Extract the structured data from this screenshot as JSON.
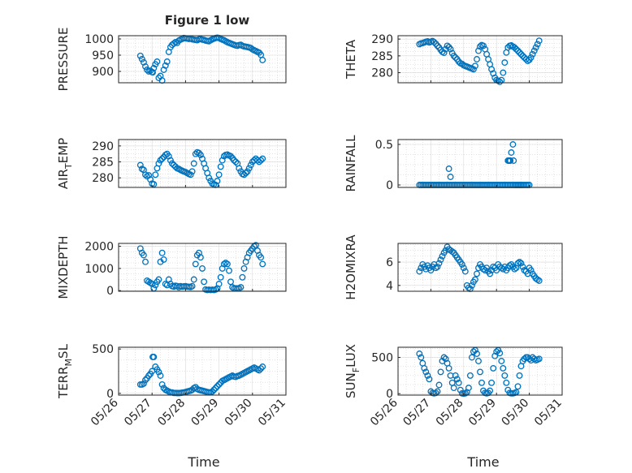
{
  "figure": {
    "title": "Figure 1 low"
  },
  "colors": {
    "marker": "#0072bd",
    "axes": "#262626"
  },
  "x_axis": {
    "label": "Time",
    "ticks": [
      "05/26",
      "05/27",
      "05/28",
      "05/29",
      "05/30",
      "05/31"
    ],
    "tick_values": [
      26,
      27,
      28,
      29,
      30,
      31
    ],
    "range": [
      26,
      31
    ]
  },
  "chart_data": [
    {
      "type": "scatter",
      "ylabel": "PRESSURE",
      "ylim": [
        865,
        1010
      ],
      "yticks": [
        900,
        950,
        1000
      ],
      "grid": true,
      "minor_grid": true,
      "x": [
        26.65,
        26.7,
        26.75,
        26.8,
        26.85,
        26.9,
        26.95,
        27.0,
        27.02,
        27.05,
        27.1,
        27.15,
        27.2,
        27.25,
        27.3,
        27.35,
        27.4,
        27.45,
        27.5,
        27.55,
        27.6,
        27.65,
        27.7,
        27.75,
        27.8,
        27.85,
        27.9,
        27.95,
        28.0,
        28.05,
        28.1,
        28.15,
        28.2,
        28.25,
        28.3,
        28.35,
        28.4,
        28.45,
        28.5,
        28.55,
        28.6,
        28.65,
        28.7,
        28.75,
        28.8,
        28.85,
        28.9,
        28.95,
        29.0,
        29.05,
        29.1,
        29.15,
        29.2,
        29.25,
        29.3,
        29.35,
        29.4,
        29.45,
        29.5,
        29.55,
        29.6,
        29.65,
        29.7,
        29.75,
        29.8,
        29.85,
        29.9,
        29.95,
        30.0,
        30.05,
        30.1,
        30.15,
        30.2,
        30.25,
        30.3
      ],
      "y": [
        948,
        938,
        928,
        915,
        905,
        900,
        902,
        898,
        897,
        910,
        922,
        930,
        880,
        886,
        872,
        905,
        918,
        930,
        960,
        975,
        982,
        986,
        990,
        988,
        995,
        998,
        1000,
        1003,
        1002,
        1001,
        1000,
        1001,
        999,
        998,
        997,
        996,
        999,
        1000,
        998,
        997,
        995,
        994,
        993,
        996,
        999,
        1001,
        1003,
        1004,
        1003,
        1000,
        998,
        996,
        993,
        990,
        988,
        986,
        984,
        982,
        980,
        979,
        981,
        982,
        979,
        977,
        976,
        975,
        974,
        972,
        968,
        965,
        963,
        960,
        958,
        951,
        935
      ]
    },
    {
      "type": "scatter",
      "ylabel": "THETA",
      "ylim": [
        277,
        291
      ],
      "yticks": [
        280,
        285,
        290
      ],
      "grid": true,
      "minor_grid": true,
      "x": [
        26.65,
        26.7,
        26.75,
        26.8,
        26.85,
        26.9,
        26.95,
        27.0,
        27.05,
        27.1,
        27.15,
        27.2,
        27.25,
        27.3,
        27.35,
        27.4,
        27.45,
        27.5,
        27.55,
        27.6,
        27.65,
        27.7,
        27.75,
        27.8,
        27.85,
        27.9,
        27.95,
        28.0,
        28.05,
        28.1,
        28.15,
        28.2,
        28.25,
        28.3,
        28.35,
        28.4,
        28.45,
        28.5,
        28.55,
        28.6,
        28.65,
        28.7,
        28.75,
        28.8,
        28.85,
        28.9,
        28.95,
        29.0,
        29.05,
        29.1,
        29.15,
        29.2,
        29.25,
        29.3,
        29.35,
        29.4,
        29.45,
        29.5,
        29.55,
        29.6,
        29.65,
        29.7,
        29.75,
        29.8,
        29.85,
        29.9,
        29.95,
        30.0,
        30.05,
        30.1,
        30.15,
        30.2,
        30.25,
        30.3
      ],
      "y": [
        288.5,
        288.7,
        288.8,
        289.0,
        289.2,
        289.3,
        289.0,
        289.2,
        289.4,
        289.1,
        288.6,
        288.0,
        287.5,
        286.8,
        286.2,
        285.9,
        287.0,
        288.0,
        287.6,
        287.0,
        285.8,
        285.0,
        284.5,
        284.0,
        283.3,
        282.8,
        282.6,
        282.2,
        282.0,
        281.8,
        281.6,
        281.4,
        281.2,
        281.0,
        282.0,
        284.0,
        286.5,
        287.8,
        288.2,
        288.0,
        287.0,
        285.5,
        284.0,
        282.5,
        281.0,
        279.8,
        278.5,
        277.8,
        277.6,
        277.3,
        277.8,
        280.0,
        283.0,
        286.0,
        287.5,
        288.0,
        288.1,
        287.8,
        287.5,
        287.0,
        286.5,
        286.0,
        285.5,
        285.0,
        284.5,
        284.0,
        283.5,
        283.8,
        284.5,
        285.5,
        286.5,
        287.5,
        288.5,
        289.5
      ]
    },
    {
      "type": "scatter",
      "ylabel_main": "AIR",
      "ylabel_sub": "T",
      "ylabel_tail": "EMP",
      "ylim": [
        277,
        292
      ],
      "yticks": [
        280,
        285,
        290
      ],
      "grid": true,
      "minor_grid": true,
      "x": [
        26.65,
        26.7,
        26.75,
        26.8,
        26.85,
        26.9,
        26.95,
        27.0,
        27.05,
        27.1,
        27.15,
        27.2,
        27.25,
        27.3,
        27.35,
        27.4,
        27.45,
        27.5,
        27.55,
        27.6,
        27.65,
        27.7,
        27.75,
        27.8,
        27.85,
        27.9,
        27.95,
        28.0,
        28.05,
        28.1,
        28.15,
        28.2,
        28.25,
        28.3,
        28.35,
        28.4,
        28.45,
        28.5,
        28.55,
        28.6,
        28.65,
        28.7,
        28.75,
        28.8,
        28.85,
        28.9,
        28.95,
        29.0,
        29.05,
        29.1,
        29.15,
        29.2,
        29.25,
        29.3,
        29.35,
        29.4,
        29.45,
        29.5,
        29.55,
        29.6,
        29.65,
        29.7,
        29.75,
        29.8,
        29.85,
        29.9,
        29.95,
        30.0,
        30.05,
        30.1,
        30.15,
        30.2,
        30.25,
        30.3
      ],
      "y": [
        284,
        282.8,
        282.5,
        281,
        280.5,
        280.8,
        279.5,
        278.2,
        278,
        281,
        283,
        284.5,
        285.5,
        286,
        286.5,
        287.2,
        287.5,
        286.8,
        285.5,
        284.5,
        284,
        283.5,
        283,
        282.8,
        282.5,
        282.2,
        282,
        281.8,
        281.5,
        281.2,
        281,
        282,
        284.5,
        287.5,
        288,
        287.8,
        287.2,
        286,
        284.5,
        283,
        281.5,
        280,
        279,
        278.2,
        278,
        277.8,
        279,
        281,
        283.5,
        285.5,
        286.8,
        287.2,
        287.3,
        287,
        286.8,
        286.2,
        285.5,
        285,
        284.5,
        283,
        282,
        281.2,
        281,
        281.5,
        282,
        283,
        284,
        285,
        285.5,
        286,
        285.5,
        285,
        285.5,
        286
      ]
    },
    {
      "type": "scatter",
      "ylabel": "RAINFALL",
      "ylim": [
        -0.03,
        0.56
      ],
      "yticks": [
        0,
        0.5
      ],
      "ytick_labels": [
        "0",
        "0.5"
      ],
      "grid": true,
      "minor_grid": true,
      "x": [
        26.65,
        26.7,
        26.75,
        26.8,
        26.85,
        26.9,
        26.95,
        27.0,
        27.05,
        27.1,
        27.15,
        27.2,
        27.25,
        27.3,
        27.35,
        27.4,
        27.45,
        27.5,
        27.55,
        27.6,
        27.65,
        27.7,
        27.75,
        27.8,
        27.85,
        27.9,
        27.95,
        28.0,
        28.05,
        28.1,
        28.15,
        28.2,
        28.25,
        28.3,
        28.35,
        28.4,
        28.45,
        28.5,
        28.55,
        28.6,
        28.65,
        28.7,
        28.75,
        28.8,
        28.85,
        28.9,
        28.95,
        29.0,
        29.05,
        29.1,
        29.15,
        29.2,
        29.25,
        29.3,
        29.35,
        29.4,
        29.45,
        29.5,
        29.55,
        29.6,
        29.65,
        29.7,
        29.75,
        29.8,
        29.85,
        29.9,
        29.95,
        30.0,
        29.35,
        29.37,
        29.4,
        29.42,
        27.55,
        27.6,
        29.45,
        29.5,
        29.52,
        29.6,
        29.65,
        29.7,
        29.75
      ],
      "y": [
        0,
        0,
        0,
        0,
        0,
        0,
        0,
        0,
        0,
        0,
        0,
        0,
        0,
        0,
        0,
        0,
        0,
        0,
        0,
        0,
        0,
        0,
        0,
        0,
        0,
        0,
        0,
        0,
        0,
        0,
        0,
        0,
        0,
        0,
        0,
        0,
        0,
        0,
        0,
        0,
        0,
        0,
        0,
        0,
        0,
        0,
        0,
        0,
        0,
        0,
        0,
        0,
        0,
        0,
        0,
        0,
        0,
        0,
        0,
        0,
        0,
        0,
        0,
        0,
        0,
        0,
        0,
        0,
        0.3,
        0.3,
        0.3,
        0.3,
        0.2,
        0.1,
        0.4,
        0.5,
        0.3,
        0,
        0,
        0,
        0
      ]
    },
    {
      "type": "scatter",
      "ylabel": "MIXDEPTH",
      "ylim": [
        -30,
        2130
      ],
      "yticks": [
        0,
        1000,
        2000
      ],
      "grid": true,
      "minor_grid": true,
      "x": [
        26.65,
        26.7,
        26.75,
        26.8,
        26.85,
        26.9,
        26.95,
        27.0,
        27.05,
        27.1,
        27.15,
        27.2,
        27.25,
        27.3,
        27.35,
        27.4,
        27.45,
        27.5,
        27.55,
        27.6,
        27.65,
        27.7,
        27.75,
        27.8,
        27.85,
        27.9,
        27.95,
        28.0,
        28.05,
        28.1,
        28.15,
        28.2,
        28.25,
        28.3,
        28.35,
        28.4,
        28.45,
        28.5,
        28.55,
        28.6,
        28.65,
        28.7,
        28.75,
        28.8,
        28.85,
        28.9,
        28.95,
        29.0,
        29.05,
        29.1,
        29.15,
        29.2,
        29.25,
        29.3,
        29.35,
        29.4,
        29.45,
        29.5,
        29.55,
        29.6,
        29.65,
        29.7,
        29.75,
        29.8,
        29.85,
        29.9,
        29.95,
        30.0,
        30.05,
        30.1,
        30.15,
        30.2,
        30.25,
        30.3
      ],
      "y": [
        1900,
        1700,
        1600,
        1300,
        450,
        400,
        350,
        300,
        100,
        250,
        400,
        500,
        1300,
        1700,
        1400,
        300,
        250,
        500,
        300,
        200,
        180,
        220,
        200,
        150,
        200,
        180,
        190,
        200,
        180,
        170,
        160,
        200,
        500,
        1200,
        1600,
        1700,
        1500,
        1000,
        400,
        50,
        30,
        40,
        30,
        40,
        30,
        50,
        100,
        300,
        600,
        1000,
        1200,
        1250,
        1200,
        900,
        400,
        150,
        100,
        100,
        100,
        100,
        150,
        600,
        1000,
        1300,
        1500,
        1700,
        1800,
        1900,
        2000,
        2050,
        1800,
        1600,
        1500,
        1200
      ]
    },
    {
      "type": "scatter",
      "ylabel": "H2OMIXRA",
      "ylim": [
        3.5,
        7.6
      ],
      "yticks": [
        4,
        6
      ],
      "grid": true,
      "minor_grid": true,
      "x": [
        26.65,
        26.7,
        26.75,
        26.8,
        26.85,
        26.9,
        26.95,
        27.0,
        27.05,
        27.1,
        27.15,
        27.2,
        27.25,
        27.3,
        27.35,
        27.4,
        27.45,
        27.5,
        27.55,
        27.6,
        27.65,
        27.7,
        27.75,
        27.8,
        27.85,
        27.9,
        27.95,
        28.0,
        28.05,
        28.1,
        28.15,
        28.2,
        28.25,
        28.3,
        28.35,
        28.4,
        28.45,
        28.5,
        28.55,
        28.6,
        28.65,
        28.7,
        28.75,
        28.8,
        28.85,
        28.9,
        28.95,
        29.0,
        29.05,
        29.1,
        29.15,
        29.2,
        29.25,
        29.3,
        29.35,
        29.4,
        29.45,
        29.5,
        29.55,
        29.6,
        29.65,
        29.7,
        29.75,
        29.8,
        29.85,
        29.9,
        29.95,
        30.0,
        30.05,
        30.1,
        30.15,
        30.2,
        30.25,
        30.3
      ],
      "y": [
        5.2,
        5.5,
        5.8,
        5.6,
        5.4,
        5.7,
        5.5,
        5.3,
        5.6,
        5.8,
        5.5,
        5.6,
        5.9,
        6.2,
        6.5,
        6.8,
        7.0,
        7.3,
        7.1,
        7.0,
        6.9,
        6.8,
        6.6,
        6.4,
        6.2,
        6.0,
        5.8,
        5.5,
        5.2,
        4.0,
        3.8,
        3.7,
        4.0,
        4.3,
        4.5,
        5.0,
        5.5,
        5.8,
        5.6,
        5.4,
        5.3,
        5.5,
        5.2,
        5.0,
        5.3,
        5.6,
        5.5,
        5.3,
        5.8,
        5.6,
        5.5,
        5.4,
        5.6,
        5.3,
        5.5,
        5.7,
        5.8,
        5.6,
        5.4,
        5.5,
        5.9,
        6.0,
        5.9,
        5.6,
        5.3,
        5.2,
        5.0,
        5.5,
        5.3,
        5.0,
        4.8,
        4.6,
        4.5,
        4.4
      ]
    },
    {
      "type": "scatter",
      "ylabel_main": "TERR",
      "ylabel_sub": "M",
      "ylabel_tail": "SL",
      "ylim": [
        -20,
        520
      ],
      "yticks": [
        0,
        500
      ],
      "grid": true,
      "minor_grid": true,
      "x": [
        26.65,
        26.7,
        26.75,
        26.8,
        26.85,
        26.9,
        26.95,
        27.0,
        27.02,
        27.05,
        27.1,
        27.15,
        27.2,
        27.25,
        27.3,
        27.35,
        27.4,
        27.45,
        27.5,
        27.55,
        27.6,
        27.65,
        27.7,
        27.75,
        27.8,
        27.85,
        27.9,
        27.95,
        28.0,
        28.05,
        28.1,
        28.15,
        28.2,
        28.25,
        28.3,
        28.35,
        28.4,
        28.45,
        28.5,
        28.55,
        28.6,
        28.65,
        28.7,
        28.75,
        28.8,
        28.85,
        28.9,
        28.95,
        29.0,
        29.05,
        29.1,
        29.15,
        29.2,
        29.25,
        29.3,
        29.35,
        29.4,
        29.45,
        29.5,
        29.55,
        29.6,
        29.65,
        29.7,
        29.75,
        29.8,
        29.85,
        29.9,
        29.95,
        30.0,
        30.05,
        30.1,
        30.15,
        30.2,
        30.25,
        30.3
      ],
      "y": [
        100,
        100,
        110,
        150,
        170,
        200,
        220,
        250,
        410,
        410,
        300,
        270,
        240,
        200,
        100,
        60,
        40,
        30,
        20,
        10,
        10,
        5,
        5,
        3,
        3,
        5,
        8,
        10,
        15,
        20,
        25,
        30,
        40,
        60,
        70,
        50,
        40,
        35,
        30,
        25,
        20,
        15,
        10,
        12,
        20,
        40,
        60,
        80,
        100,
        120,
        140,
        150,
        160,
        170,
        180,
        190,
        200,
        190,
        185,
        195,
        200,
        210,
        220,
        230,
        240,
        250,
        260,
        270,
        280,
        290,
        280,
        270,
        260,
        280,
        300
      ]
    },
    {
      "type": "scatter",
      "ylabel_main": "SUN",
      "ylabel_sub": "F",
      "ylabel_tail": "LUX",
      "ylim": [
        -20,
        640
      ],
      "yticks": [
        0,
        500
      ],
      "grid": true,
      "minor_grid": true,
      "x": [
        26.65,
        26.7,
        26.75,
        26.8,
        26.85,
        26.9,
        26.95,
        27.0,
        27.05,
        27.1,
        27.15,
        27.2,
        27.25,
        27.3,
        27.35,
        27.4,
        27.45,
        27.5,
        27.55,
        27.6,
        27.65,
        27.7,
        27.75,
        27.8,
        27.85,
        27.9,
        27.95,
        28.0,
        28.05,
        28.1,
        28.15,
        28.2,
        28.25,
        28.3,
        28.35,
        28.4,
        28.45,
        28.5,
        28.55,
        28.6,
        28.65,
        28.7,
        28.75,
        28.8,
        28.85,
        28.9,
        28.95,
        29.0,
        29.05,
        29.1,
        29.15,
        29.2,
        29.25,
        29.3,
        29.35,
        29.4,
        29.45,
        29.5,
        29.55,
        29.6,
        29.65,
        29.7,
        29.75,
        29.8,
        29.85,
        29.9,
        29.95,
        30.0,
        30.05,
        30.1,
        30.15,
        30.2,
        30.25,
        30.3
      ],
      "y": [
        550,
        500,
        420,
        350,
        300,
        250,
        200,
        30,
        10,
        5,
        10,
        30,
        120,
        300,
        450,
        500,
        480,
        420,
        350,
        250,
        150,
        80,
        250,
        200,
        150,
        50,
        5,
        0,
        5,
        20,
        80,
        250,
        500,
        580,
        600,
        550,
        450,
        300,
        150,
        40,
        10,
        5,
        10,
        40,
        150,
        350,
        520,
        580,
        600,
        560,
        450,
        350,
        250,
        150,
        50,
        10,
        5,
        5,
        10,
        20,
        100,
        250,
        380,
        450,
        480,
        500,
        500,
        480,
        460,
        500,
        480,
        460,
        470,
        480
      ]
    }
  ]
}
